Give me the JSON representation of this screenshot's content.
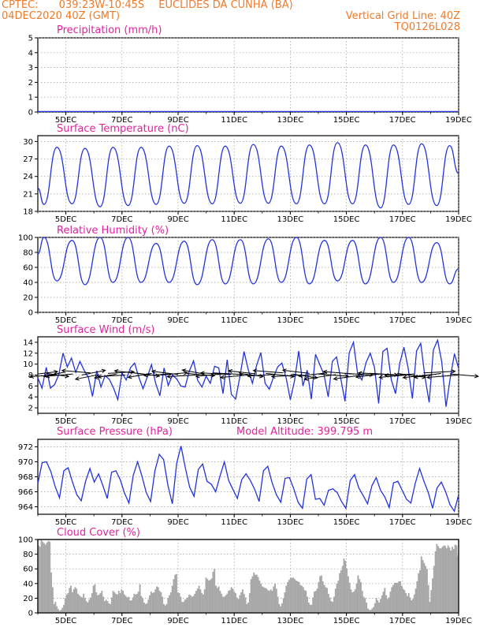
{
  "header": {
    "line1_left": "CPTEC:",
    "line1_coords": "039:23W-10:45S",
    "line1_station": "EUCLIDES DA CUNHA (BA)",
    "line2_left": "04DEC2020 40Z (GMT)",
    "line2_right": "Vertical Grid Line: 40Z",
    "line3_right": "TQ0126L028"
  },
  "colors": {
    "line": "#2233dd",
    "title": "#e0249c",
    "header": "#f07a2a",
    "bar": "#a8a8a8",
    "wind": "#000000"
  },
  "date_labels": [
    "5DEC",
    "7DEC",
    "9DEC",
    "11DEC",
    "13DEC",
    "15DEC",
    "17DEC",
    "19DEC"
  ],
  "chart_data": [
    {
      "type": "line",
      "title": "Precipitation (mm/h)",
      "ylim": [
        0,
        5
      ],
      "yticks": [
        0,
        1,
        2,
        3,
        4,
        5
      ],
      "x_start": "4DEC2020",
      "x_end": "19DEC2020",
      "values": [
        0.03,
        0.03,
        0.03,
        0.03,
        0.03,
        0.03,
        0.03,
        0.03,
        0.03,
        0.03,
        0.03,
        0.03,
        0.03,
        0.03,
        0.03,
        0.03
      ]
    },
    {
      "type": "line",
      "title": "Surface Temperature (nC)",
      "ylim": [
        18,
        31
      ],
      "yticks": [
        18,
        21,
        24,
        27,
        30
      ],
      "daily_max": [
        29,
        28.8,
        29,
        29,
        29.2,
        29.3,
        29.2,
        29.5,
        29.2,
        29.4,
        29.8,
        29.4,
        29.4,
        29.6,
        29.3
      ],
      "daily_min": [
        19.2,
        19.3,
        18.8,
        19.0,
        19.2,
        19.4,
        19.3,
        19.4,
        19.4,
        19.3,
        19.3,
        19.3,
        18.6,
        19.2,
        19.0
      ],
      "start_value": 22,
      "end_value": 24.5
    },
    {
      "type": "line",
      "title": "Relative Humidity (%)",
      "ylim": [
        0,
        100
      ],
      "yticks": [
        0,
        20,
        40,
        60,
        80,
        100
      ],
      "daily_max": [
        100,
        96,
        100,
        100,
        92,
        95,
        97,
        97,
        98,
        100,
        96,
        96,
        100,
        100,
        93
      ],
      "daily_min": [
        42,
        37,
        40,
        40,
        40,
        37,
        38,
        38,
        40,
        38,
        42,
        38,
        40,
        40,
        38
      ],
      "start_value": 78,
      "end_value": 58
    },
    {
      "type": "line",
      "title": "Surface Wind (m/s)",
      "ylim": [
        1,
        15
      ],
      "yticks": [
        2,
        4,
        6,
        8,
        10,
        12,
        14
      ],
      "values": [
        7.5,
        5.6,
        9.4,
        5.6,
        6.3,
        8.1,
        12.0,
        9.5,
        11.1,
        8.5,
        10.5,
        8.9,
        7.6,
        4.1,
        8.8,
        5.8,
        7.9,
        7.2,
        5.6,
        3.5,
        8.4,
        7.1,
        9.3,
        10.2,
        7.6,
        5.5,
        7.6,
        9.9,
        6.5,
        4.2,
        9.3,
        6.1,
        8.0,
        7.3,
        6.0,
        5.8,
        8.7,
        10.6,
        7.0,
        5.8,
        7.8,
        6.5,
        9.6,
        9.3,
        4.6,
        10.8,
        4.5,
        3.6,
        7.6,
        12.3,
        9.0,
        6.5,
        9.8,
        12.1,
        6.5,
        5.4,
        7.6,
        9.5,
        10.2,
        7.5,
        3.5,
        6.9,
        12.4,
        6.0,
        8.9,
        3.6,
        11.8,
        9.9,
        8.1,
        4.0,
        10.5,
        11.3,
        7.3,
        3.2,
        12.1,
        14.0,
        8.3,
        7.1,
        10.3,
        12.0,
        9.4,
        2.8,
        12.3,
        12.9,
        7.1,
        4.6,
        10.1,
        13.1,
        9.3,
        3.7,
        12.4,
        13.8,
        7.6,
        3.0,
        12.6,
        14.4,
        10.4,
        2.2,
        7.4,
        11.9,
        9.2
      ]
    },
    {
      "type": "line",
      "title": "Surface Pressure (hPa)",
      "annotation": "Model Altitude: 399.795 m",
      "ylim": [
        963,
        973
      ],
      "yticks": [
        964,
        966,
        968,
        970,
        972
      ],
      "values": [
        967.1,
        969.9,
        970.0,
        968.7,
        966.7,
        965.2,
        968.8,
        969.2,
        967.3,
        965.6,
        964.8,
        967.4,
        969.1,
        967.3,
        968.4,
        966.8,
        965.1,
        968.6,
        968.8,
        967.6,
        965.8,
        964.5,
        968.2,
        970.0,
        968.1,
        965.9,
        964.7,
        968.8,
        971.0,
        970.3,
        966.8,
        964.4,
        969.8,
        972.1,
        969.2,
        966.6,
        965.4,
        969.0,
        969.7,
        967.4,
        967.0,
        966.0,
        968.1,
        970.0,
        967.5,
        966.3,
        965.1,
        967.6,
        968.4,
        967.5,
        966.3,
        964.7,
        968.8,
        969.4,
        967.2,
        965.6,
        964.6,
        967.8,
        967.9,
        966.4,
        964.6,
        963.8,
        967.7,
        968.3,
        965.0,
        965.1,
        964.2,
        966.2,
        966.4,
        965.9,
        964.7,
        963.8,
        967.5,
        968.3,
        966.5,
        965.5,
        964.4,
        966.8,
        967.9,
        966.2,
        965.3,
        963.9,
        967.2,
        967.4,
        966.2,
        965.0,
        964.5,
        967.1,
        969.1,
        967.4,
        965.9,
        963.8,
        966.5,
        967.3,
        966.0,
        964.3,
        963.4,
        965.6
      ]
    },
    {
      "type": "bar",
      "title": "Cloud Cover (%)",
      "ylim": [
        0,
        100
      ],
      "yticks": [
        0,
        20,
        40,
        60,
        80,
        100
      ],
      "values": [
        92,
        90,
        100,
        97,
        95,
        93,
        96,
        98,
        97,
        55,
        35,
        12,
        15,
        9,
        5,
        3,
        4,
        7,
        11,
        20,
        25,
        27,
        34,
        37,
        28,
        32,
        35,
        33,
        26,
        24,
        22,
        21,
        26,
        20,
        16,
        14,
        18,
        21,
        27,
        37,
        39,
        28,
        24,
        25,
        27,
        30,
        22,
        16,
        18,
        16,
        13,
        12,
        21,
        30,
        28,
        26,
        25,
        30,
        27,
        32,
        30,
        25,
        23,
        21,
        22,
        17,
        17,
        21,
        26,
        25,
        26,
        29,
        39,
        23,
        20,
        14,
        12,
        13,
        18,
        24,
        29,
        27,
        28,
        32,
        36,
        35,
        30,
        28,
        22,
        12,
        10,
        12,
        20,
        24,
        28,
        37,
        46,
        52,
        53,
        28,
        27,
        22,
        15,
        15,
        18,
        19,
        21,
        25,
        24,
        22,
        23,
        26,
        30,
        33,
        37,
        32,
        27,
        25,
        32,
        48,
        46,
        44,
        45,
        47,
        56,
        60,
        37,
        34,
        36,
        30,
        26,
        22,
        22,
        24,
        26,
        30,
        31,
        35,
        33,
        29,
        27,
        21,
        19,
        24,
        28,
        32,
        26,
        21,
        12,
        14,
        27,
        46,
        50,
        55,
        52,
        52,
        49,
        44,
        40,
        36,
        35,
        34,
        33,
        31,
        30,
        32,
        30,
        36,
        40,
        33,
        22,
        12,
        9,
        13,
        20,
        28,
        37,
        42,
        45,
        47,
        48,
        48,
        46,
        44,
        43,
        42,
        38,
        37,
        35,
        31,
        30,
        22,
        14,
        11,
        11,
        21,
        29,
        30,
        33,
        42,
        50,
        51,
        43,
        38,
        35,
        34,
        26,
        21,
        16,
        15,
        22,
        33,
        40,
        44,
        54,
        58,
        64,
        74,
        71,
        60,
        50,
        41,
        32,
        28,
        29,
        32,
        40,
        51,
        46,
        42,
        30,
        22,
        20,
        14,
        6,
        4,
        4,
        6,
        8,
        13,
        20,
        17,
        14,
        19,
        24,
        29,
        34,
        24,
        19,
        21,
        29,
        35,
        38,
        41,
        41,
        41,
        43,
        43,
        37,
        33,
        31,
        27,
        23,
        27,
        21,
        17,
        19,
        25,
        33,
        43,
        54,
        58,
        77,
        72,
        68,
        64,
        60,
        38,
        15,
        31,
        47,
        64,
        84,
        94,
        91,
        88,
        88,
        90,
        92,
        91,
        88,
        92,
        89,
        85,
        90,
        87,
        93,
        92,
        78
      ]
    }
  ],
  "wind_vectors": {
    "legend": "",
    "points": [
      [
        0,
        8.2,
        25,
        -3
      ],
      [
        7,
        8.3,
        28,
        4
      ],
      [
        14,
        8.0,
        -32,
        2
      ],
      [
        21,
        8.5,
        -26,
        5
      ],
      [
        28,
        8.2,
        -34,
        3
      ],
      [
        35,
        8.0,
        30,
        -6
      ],
      [
        42,
        8.4,
        -36,
        -3
      ],
      [
        49,
        8.1,
        -30,
        6
      ],
      [
        56,
        8.3,
        33,
        -2
      ],
      [
        63,
        8.2,
        -28,
        5
      ],
      [
        70,
        8.0,
        -35,
        2
      ],
      [
        77,
        8.4,
        32,
        4
      ],
      [
        84,
        8.2,
        -36,
        -4
      ],
      [
        91,
        8.3,
        -30,
        5
      ],
      [
        98,
        8.0,
        34,
        -3
      ],
      [
        105,
        8.2,
        -32,
        2
      ],
      [
        112,
        8.1,
        -33,
        -4
      ],
      [
        119,
        8.3,
        35,
        3
      ],
      [
        126,
        8.0,
        -36,
        2
      ],
      [
        133,
        8.2,
        -28,
        -5
      ],
      [
        140,
        8.4,
        37,
        2
      ],
      [
        147,
        8.2,
        -33,
        3
      ],
      [
        154,
        8.1,
        -38,
        -2
      ],
      [
        161,
        8.3,
        30,
        4
      ],
      [
        168,
        8.0,
        -35,
        3
      ],
      [
        175,
        8.2,
        -36,
        -4
      ],
      [
        182,
        8.3,
        36,
        4
      ],
      [
        189,
        8.1,
        -34,
        2
      ],
      [
        196,
        8.4,
        -38,
        -3
      ],
      [
        203,
        8.2,
        32,
        5
      ],
      [
        210,
        8.0,
        -37,
        2
      ],
      [
        217,
        8.3,
        -34,
        -4
      ],
      [
        224,
        8.2,
        38,
        3
      ],
      [
        231,
        8.4,
        -36,
        4
      ],
      [
        238,
        8.1,
        -40,
        6
      ],
      [
        245,
        8.3,
        36,
        2
      ],
      [
        252,
        8.2,
        -38,
        -3
      ],
      [
        259,
        8.0,
        -36,
        5
      ],
      [
        266,
        8.3,
        34,
        2
      ],
      [
        273,
        8.2,
        -30,
        4
      ],
      [
        280,
        8.1,
        -38,
        -2
      ],
      [
        287,
        8.3,
        36,
        5
      ],
      [
        294,
        8.0,
        -34,
        3
      ],
      [
        301,
        8.2,
        -38,
        2
      ],
      [
        308,
        8.4,
        40,
        -2
      ],
      [
        315,
        8.1,
        -37,
        4
      ],
      [
        322,
        8.3,
        -34,
        5
      ],
      [
        329,
        8.2,
        36,
        3
      ],
      [
        336,
        8.0,
        -40,
        3
      ]
    ]
  }
}
